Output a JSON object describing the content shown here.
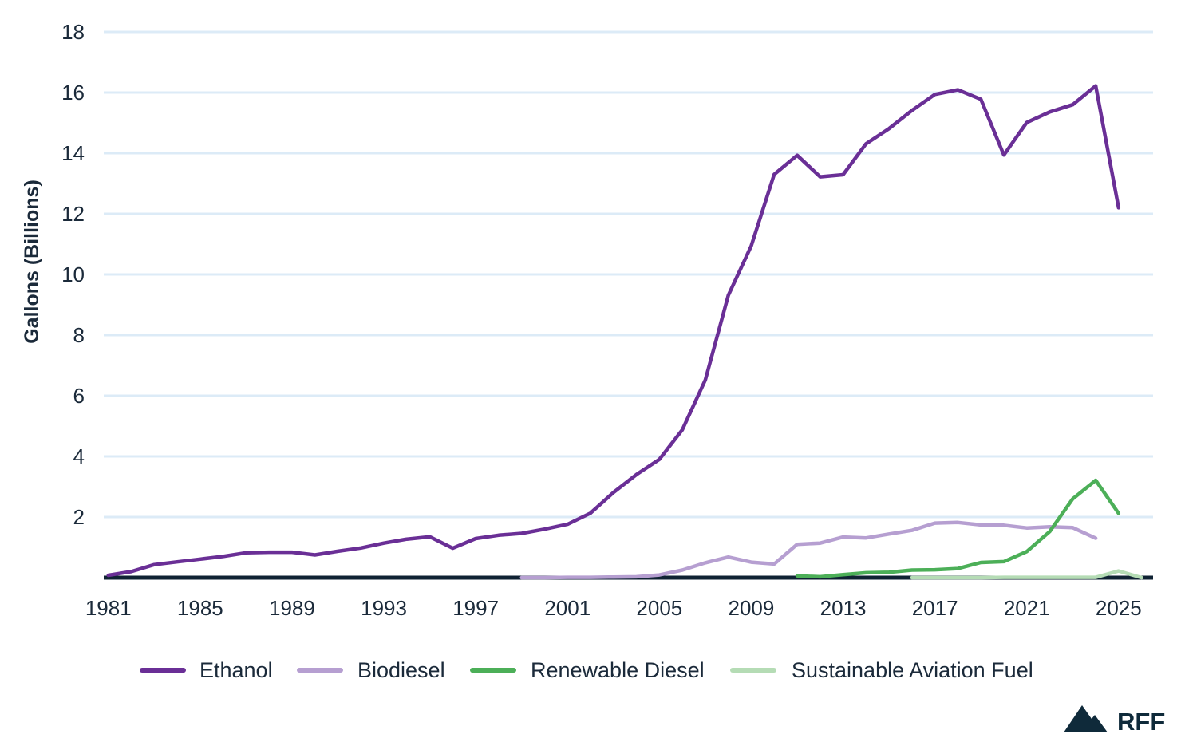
{
  "chart_data": {
    "type": "line",
    "title": "",
    "xlabel": "",
    "ylabel": "Gallons (Billions)",
    "xlim": [
      1980.8,
      2026.5
    ],
    "ylim": [
      0,
      18
    ],
    "x_ticks": [
      1981,
      1985,
      1989,
      1993,
      1997,
      2001,
      2005,
      2009,
      2013,
      2017,
      2021,
      2025
    ],
    "y_ticks": [
      2,
      4,
      6,
      8,
      10,
      12,
      14,
      16,
      18
    ],
    "grid": "horizontal",
    "legend_position": "bottom",
    "series": [
      {
        "name": "Ethanol",
        "color": "#6a2f96",
        "x": [
          1981,
          1982,
          1983,
          1984,
          1985,
          1986,
          1987,
          1988,
          1989,
          1990,
          1991,
          1992,
          1993,
          1994,
          1995,
          1996,
          1997,
          1998,
          1999,
          2000,
          2001,
          2002,
          2003,
          2004,
          2005,
          2006,
          2007,
          2008,
          2009,
          2010,
          2011,
          2012,
          2013,
          2014,
          2015,
          2016,
          2017,
          2018,
          2019,
          2020,
          2021,
          2022,
          2023,
          2024,
          2025
        ],
        "y": [
          0.08,
          0.2,
          0.43,
          0.52,
          0.61,
          0.7,
          0.82,
          0.84,
          0.84,
          0.75,
          0.87,
          0.98,
          1.14,
          1.27,
          1.35,
          0.97,
          1.29,
          1.4,
          1.46,
          1.6,
          1.76,
          2.13,
          2.81,
          3.4,
          3.9,
          4.88,
          6.52,
          9.31,
          10.94,
          13.3,
          13.93,
          13.22,
          13.29,
          14.31,
          14.81,
          15.41,
          15.94,
          16.09,
          15.78,
          13.94,
          15.01,
          15.36,
          15.6,
          16.22,
          12.2
        ]
      },
      {
        "name": "Biodiesel",
        "color": "#b69fd1",
        "x": [
          1999,
          2000,
          2001,
          2002,
          2003,
          2004,
          2005,
          2006,
          2007,
          2008,
          2009,
          2010,
          2011,
          2012,
          2013,
          2014,
          2015,
          2016,
          2017,
          2018,
          2019,
          2020,
          2021,
          2022,
          2023,
          2024
        ],
        "y": [
          0.0,
          0.0,
          0.01,
          0.01,
          0.02,
          0.03,
          0.09,
          0.25,
          0.49,
          0.68,
          0.51,
          0.45,
          1.1,
          1.14,
          1.34,
          1.31,
          1.44,
          1.56,
          1.8,
          1.82,
          1.74,
          1.73,
          1.64,
          1.68,
          1.65,
          1.3
        ]
      },
      {
        "name": "Renewable Diesel",
        "color": "#4caf58",
        "x": [
          2011,
          2012,
          2013,
          2014,
          2015,
          2016,
          2017,
          2018,
          2019,
          2020,
          2021,
          2022,
          2023,
          2024,
          2025
        ],
        "y": [
          0.06,
          0.03,
          0.1,
          0.16,
          0.18,
          0.25,
          0.26,
          0.3,
          0.5,
          0.53,
          0.86,
          1.52,
          2.6,
          3.21,
          2.12
        ]
      },
      {
        "name": "Sustainable Aviation Fuel",
        "color": "#b5dcb5",
        "x": [
          2016,
          2017,
          2018,
          2019,
          2020,
          2021,
          2022,
          2023,
          2024,
          2025,
          2026
        ],
        "y": [
          0.0,
          0.0,
          0.0,
          0.0,
          0.01,
          0.01,
          0.01,
          0.01,
          0.01,
          0.22,
          0.0
        ]
      }
    ]
  },
  "logo": {
    "text": "RFF",
    "color": "#0f2a3a"
  },
  "colors": {
    "grid": "#dcebf7",
    "baseline": "#0f2233",
    "text": "#1b2a3a"
  }
}
